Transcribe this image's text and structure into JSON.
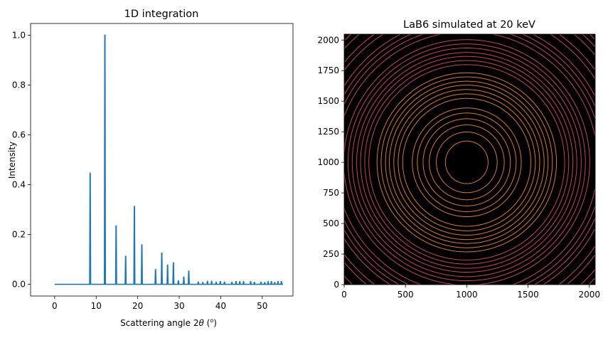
{
  "chart_data": [
    {
      "type": "line",
      "title": "1D integration",
      "xlabel": "Scattering angle 2θ (°)",
      "xlabel_parts": {
        "pre": "Scattering angle 2",
        "theta": "θ",
        "post": " (",
        "deg": "o",
        "close": ")"
      },
      "ylabel": "Intensity",
      "xlim": [
        -5.8,
        57.4
      ],
      "ylim": [
        -0.047,
        1.047
      ],
      "x_ticks": [
        0,
        10,
        20,
        30,
        40,
        50
      ],
      "y_ticks": [
        "0.0",
        "0.2",
        "0.4",
        "0.6",
        "0.8",
        "1.0"
      ],
      "line_color": "#1f77b4",
      "x_range": [
        0,
        55
      ],
      "peaks": [
        [
          8.55,
          0.446
        ],
        [
          12.1,
          1.0
        ],
        [
          14.8,
          0.234
        ],
        [
          17.1,
          0.112
        ],
        [
          19.2,
          0.312
        ],
        [
          21.0,
          0.158
        ],
        [
          24.3,
          0.059
        ],
        [
          25.8,
          0.125
        ],
        [
          27.2,
          0.077
        ],
        [
          28.6,
          0.086
        ],
        [
          29.8,
          0.014
        ],
        [
          31.1,
          0.029
        ],
        [
          32.3,
          0.053
        ],
        [
          34.6,
          0.009
        ],
        [
          35.7,
          0.007
        ],
        [
          36.8,
          0.012
        ],
        [
          37.8,
          0.012
        ],
        [
          38.9,
          0.008
        ],
        [
          39.9,
          0.011
        ],
        [
          40.9,
          0.009
        ],
        [
          42.7,
          0.008
        ],
        [
          43.7,
          0.011
        ],
        [
          44.6,
          0.011
        ],
        [
          45.5,
          0.011
        ],
        [
          47.2,
          0.011
        ],
        [
          48.1,
          0.008
        ],
        [
          49.7,
          0.008
        ],
        [
          50.6,
          0.007
        ],
        [
          51.4,
          0.01
        ],
        [
          52.2,
          0.011
        ],
        [
          53.0,
          0.007
        ],
        [
          53.8,
          0.011
        ],
        [
          54.6,
          0.011
        ]
      ]
    },
    {
      "type": "heatmap",
      "title": "LaB6 simulated at 20 keV",
      "xlim": [
        0,
        2048
      ],
      "ylim": [
        0,
        2048
      ],
      "x_ticks": [
        0,
        500,
        1000,
        1500,
        2000
      ],
      "y_ticks": [
        0,
        250,
        500,
        750,
        1000,
        1250,
        1500,
        1750,
        2000
      ],
      "background": "#000000",
      "center": [
        1000,
        1000
      ],
      "ring_colors": {
        "inner": "#d9782a",
        "outer": "#c4435a"
      }
    }
  ]
}
